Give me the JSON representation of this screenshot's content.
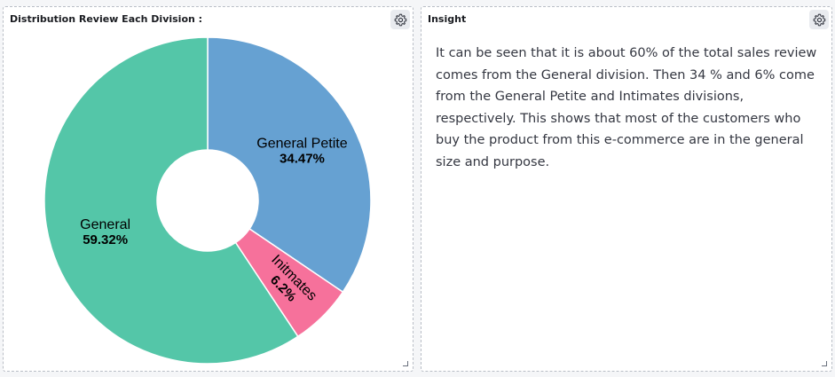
{
  "left_panel": {
    "title": "Distribution Review Each Division :"
  },
  "right_panel": {
    "title": "Insight",
    "text": "It can be seen that it is about 60% of the total sales review comes from the General division. Then 34 % and 6% come from the General Petite and Intimates divisions, respectively.  This shows that most of the customers who buy the product from this e-commerce are in the general size and purpose."
  },
  "icons": {
    "settings": "gear-icon",
    "resize": "resize-corner-icon"
  },
  "chart_data": {
    "type": "pie",
    "donut": true,
    "title": "Distribution Review Each Division :",
    "slices": [
      {
        "name": "General Petite",
        "value": 34.47,
        "label": "34.47%",
        "color": "#66a1d2"
      },
      {
        "name": "Initmates",
        "value": 6.2,
        "label": "6.2%",
        "color": "#f6719b"
      },
      {
        "name": "General",
        "value": 59.32,
        "label": "59.32%",
        "color": "#54c6a8"
      }
    ]
  }
}
